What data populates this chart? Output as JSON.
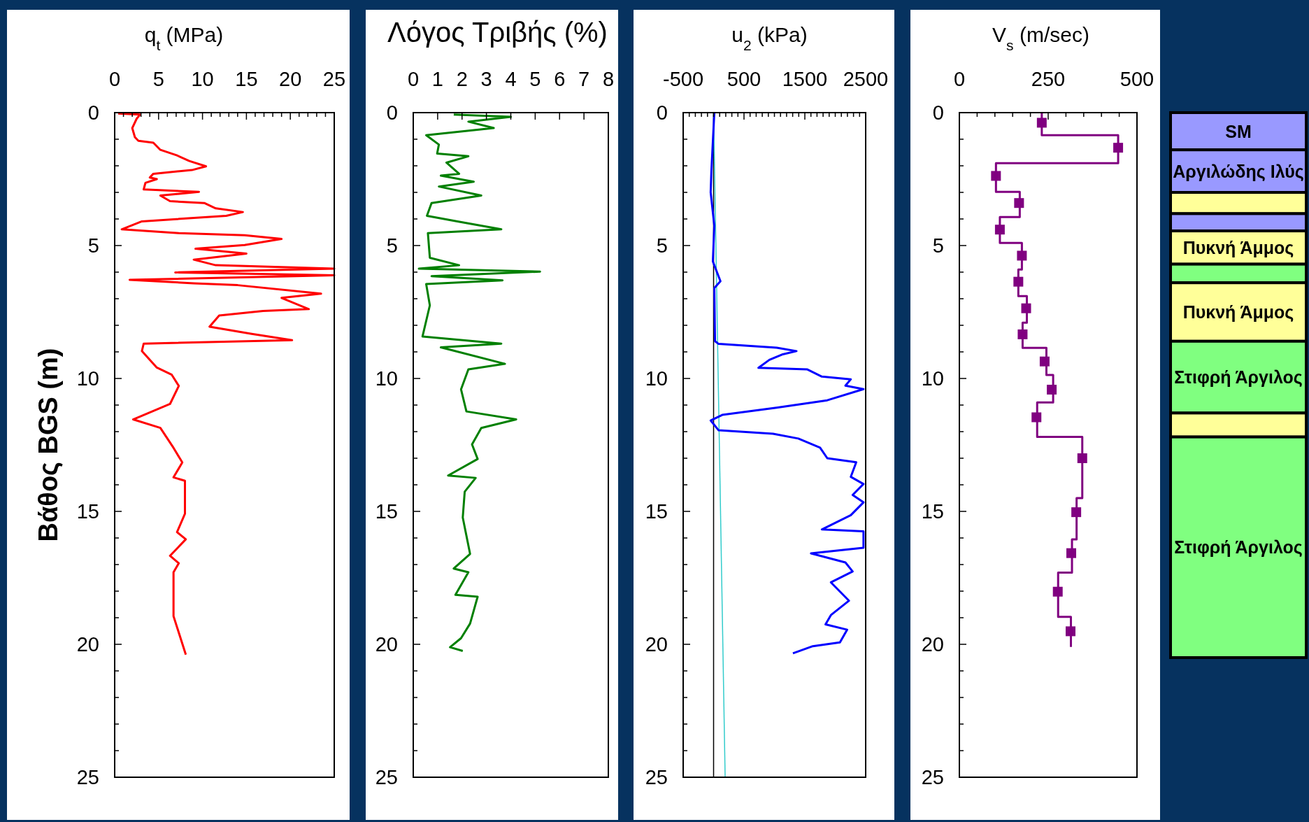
{
  "chart_data": [
    {
      "type": "line",
      "xlabel": "q$_{t}$ (MPa)",
      "ylabel": "Βάθος BGS (m)",
      "xlim": [
        0,
        25
      ],
      "ylim": [
        25,
        0
      ],
      "xticks": [
        0,
        {
          "value": 1,
          "label": null
        },
        {
          "value": 2,
          "label": null
        },
        {
          "value": 3,
          "label": null
        },
        {
          "value": 4,
          "label": null
        },
        5,
        {
          "value": 6,
          "label": null
        },
        {
          "value": 7,
          "label": null
        },
        {
          "value": 8,
          "label": null
        },
        {
          "value": 9,
          "label": null
        },
        10,
        {
          "value": 11,
          "label": null
        },
        {
          "value": 12,
          "label": null
        },
        {
          "value": 13,
          "label": null
        },
        {
          "value": 14,
          "label": null
        },
        15,
        {
          "value": 16,
          "label": null
        },
        {
          "value": 17,
          "label": null
        },
        {
          "value": 18,
          "label": null
        },
        {
          "value": 19,
          "label": null
        },
        20,
        {
          "value": 21,
          "label": null
        },
        {
          "value": 22,
          "label": null
        },
        {
          "value": 23,
          "label": null
        },
        {
          "value": 24,
          "label": null
        },
        25
      ],
      "yticks": [
        0,
        {
          "value": 1,
          "label": null
        },
        {
          "value": 2,
          "label": null
        },
        {
          "value": 3,
          "label": null
        },
        {
          "value": 4,
          "label": null
        },
        5,
        {
          "value": 6,
          "label": null
        },
        {
          "value": 7,
          "label": null
        },
        {
          "value": 8,
          "label": null
        },
        {
          "value": 9,
          "label": null
        },
        10,
        {
          "value": 11,
          "label": null
        },
        {
          "value": 12,
          "label": null
        },
        {
          "value": 13,
          "label": null
        },
        {
          "value": 14,
          "label": null
        },
        15,
        {
          "value": 16,
          "label": null
        },
        {
          "value": 17,
          "label": null
        },
        {
          "value": 18,
          "label": null
        },
        {
          "value": 19,
          "label": null
        },
        20,
        {
          "value": 21,
          "label": null
        },
        {
          "value": 22,
          "label": null
        },
        {
          "value": 23,
          "label": null
        },
        {
          "value": 24,
          "label": null
        },
        25
      ],
      "series": [
        {
          "color": "#ff0000",
          "x": [
            0.4,
            2.9,
            2.5,
            2.0,
            2.3,
            2.7,
            4.4,
            5.2,
            7.1,
            8.5,
            10.4,
            8.8,
            4.4,
            4.0,
            4.8,
            3.5,
            3.3,
            9.6,
            5.2,
            6.3,
            10.2,
            11.5,
            14.6,
            12.7,
            3.1,
            0.8,
            7.3,
            14.8,
            19.0,
            14.8,
            9.2,
            15.0,
            9.0,
            11.5,
            25.0,
            6.9,
            25.0,
            1.7,
            9.0,
            14.0,
            23.5,
            19.0,
            22.1,
            16.9,
            11.9,
            10.8,
            15.6,
            20.2,
            3.3,
            3.1,
            4.8,
            6.5,
            7.3,
            6.3,
            2.1,
            5.2,
            6.7,
            7.7,
            6.7,
            8.0,
            8.0,
            7.1,
            8.1,
            6.3,
            7.3,
            6.7,
            6.7,
            8.1
          ],
          "values": [
            0.03,
            0.07,
            0.23,
            0.58,
            0.92,
            1.06,
            1.13,
            1.4,
            1.61,
            1.82,
            2.02,
            2.16,
            2.3,
            2.44,
            2.5,
            2.64,
            2.89,
            2.98,
            3.12,
            3.33,
            3.4,
            3.6,
            3.74,
            3.88,
            4.09,
            4.39,
            4.53,
            4.61,
            4.75,
            4.98,
            5.12,
            5.3,
            5.53,
            5.74,
            5.87,
            6.01,
            6.12,
            6.29,
            6.42,
            6.49,
            6.81,
            6.97,
            7.39,
            7.46,
            7.63,
            8.05,
            8.32,
            8.56,
            8.69,
            8.97,
            9.59,
            9.86,
            10.28,
            10.96,
            11.54,
            11.86,
            12.61,
            13.16,
            13.72,
            13.85,
            15.09,
            15.78,
            16.05,
            16.67,
            16.95,
            17.29,
            18.94,
            20.39
          ]
        }
      ]
    },
    {
      "type": "line",
      "xlabel": "Λόγος Τριβής (%)",
      "xlim": [
        0,
        8
      ],
      "ylim": [
        25,
        0
      ],
      "xticks": [
        0,
        1,
        2,
        3,
        4,
        5,
        6,
        7,
        8
      ],
      "yticks": [
        0,
        {
          "value": 1,
          "label": null
        },
        {
          "value": 2,
          "label": null
        },
        {
          "value": 3,
          "label": null
        },
        {
          "value": 4,
          "label": null
        },
        5,
        {
          "value": 6,
          "label": null
        },
        {
          "value": 7,
          "label": null
        },
        {
          "value": 8,
          "label": null
        },
        {
          "value": 9,
          "label": null
        },
        10,
        {
          "value": 11,
          "label": null
        },
        {
          "value": 12,
          "label": null
        },
        {
          "value": 13,
          "label": null
        },
        {
          "value": 14,
          "label": null
        },
        15,
        {
          "value": 16,
          "label": null
        },
        {
          "value": 17,
          "label": null
        },
        {
          "value": 18,
          "label": null
        },
        {
          "value": 19,
          "label": null
        },
        20,
        {
          "value": 21,
          "label": null
        },
        {
          "value": 22,
          "label": null
        },
        {
          "value": 23,
          "label": null
        },
        {
          "value": 24,
          "label": null
        },
        25
      ],
      "series": [
        {
          "color": "#008000",
          "x": [
            1.66,
            4.0,
            2.26,
            3.3,
            0.53,
            1.05,
            0.98,
            2.26,
            1.36,
            1.88,
            1.13,
            2.48,
            1.05,
            2.79,
            0.75,
            0.56,
            1.81,
            3.61,
            0.6,
            0.68,
            1.88,
            0.23,
            5.2,
            0.75,
            3.66,
            0.53,
            0.68,
            0.38,
            3.61,
            1.13,
            3.76,
            2.26,
            1.96,
            2.18,
            4.22,
            2.79,
            2.41,
            2.64,
            1.43,
            2.56,
            2.11,
            2.03,
            2.33,
            1.66,
            2.26,
            1.73,
            2.64,
            2.33,
            1.96,
            1.51,
            2.03
          ],
          "values": [
            0.07,
            0.16,
            0.34,
            0.58,
            0.85,
            1.2,
            1.54,
            1.64,
            1.88,
            2.3,
            2.37,
            2.6,
            2.78,
            3.12,
            3.4,
            3.88,
            4.09,
            4.39,
            4.53,
            5.46,
            5.74,
            5.87,
            5.98,
            6.15,
            6.31,
            6.45,
            7.25,
            8.42,
            8.69,
            8.83,
            9.45,
            9.66,
            10.41,
            11.24,
            11.54,
            11.86,
            12.48,
            13.03,
            13.65,
            13.74,
            14.26,
            15.23,
            16.6,
            17.15,
            17.29,
            18.14,
            18.21,
            19.22,
            19.77,
            20.11,
            20.25
          ]
        }
      ]
    },
    {
      "type": "line",
      "xlabel": "u$_{2}$ (kPa)",
      "xlim": [
        -500,
        2500
      ],
      "ylim": [
        25,
        0
      ],
      "xticks": [
        -500,
        {
          "value": -400,
          "label": null
        },
        {
          "value": -300,
          "label": null
        },
        {
          "value": -200,
          "label": null
        },
        {
          "value": -100,
          "label": null
        },
        {
          "value": 0,
          "label": null
        },
        {
          "value": 100,
          "label": null
        },
        {
          "value": 200,
          "label": null
        },
        {
          "value": 300,
          "label": null
        },
        {
          "value": 400,
          "label": null
        },
        500,
        {
          "value": 600,
          "label": null
        },
        {
          "value": 700,
          "label": null
        },
        {
          "value": 800,
          "label": null
        },
        {
          "value": 900,
          "label": null
        },
        {
          "value": 1000,
          "label": null
        },
        {
          "value": 1100,
          "label": null
        },
        {
          "value": 1200,
          "label": null
        },
        {
          "value": 1300,
          "label": null
        },
        {
          "value": 1400,
          "label": null
        },
        1500,
        {
          "value": 1600,
          "label": null
        },
        {
          "value": 1700,
          "label": null
        },
        {
          "value": 1800,
          "label": null
        },
        {
          "value": 1900,
          "label": null
        },
        {
          "value": 2000,
          "label": null
        },
        {
          "value": 2100,
          "label": null
        },
        {
          "value": 2200,
          "label": null
        },
        {
          "value": 2300,
          "label": null
        },
        {
          "value": 2400,
          "label": null
        },
        2500
      ],
      "yticks": [
        0,
        {
          "value": 1,
          "label": null
        },
        {
          "value": 2,
          "label": null
        },
        {
          "value": 3,
          "label": null
        },
        {
          "value": 4,
          "label": null
        },
        5,
        {
          "value": 6,
          "label": null
        },
        {
          "value": 7,
          "label": null
        },
        {
          "value": 8,
          "label": null
        },
        {
          "value": 9,
          "label": null
        },
        10,
        {
          "value": 11,
          "label": null
        },
        {
          "value": 12,
          "label": null
        },
        {
          "value": 13,
          "label": null
        },
        {
          "value": 14,
          "label": null
        },
        15,
        {
          "value": 16,
          "label": null
        },
        {
          "value": 17,
          "label": null
        },
        {
          "value": 18,
          "label": null
        },
        {
          "value": 19,
          "label": null
        },
        20,
        {
          "value": 21,
          "label": null
        },
        {
          "value": 22,
          "label": null
        },
        {
          "value": 23,
          "label": null
        },
        {
          "value": 24,
          "label": null
        },
        25
      ],
      "ref_lines": [
        {
          "axis": "x",
          "value": 0,
          "color": "#000000"
        }
      ],
      "series": [
        {
          "color": "#33cccc",
          "x": [
            0,
            190
          ],
          "values": [
            0,
            25
          ]
        },
        {
          "color": "#0000ff",
          "x": [
            12,
            -36,
            -48,
            12,
            -12,
            113,
            12,
            24,
            83,
            1036,
            1363,
            1125,
            917,
            738,
            1542,
            1780,
            2256,
            2167,
            2464,
            1869,
            1036,
            143,
            -48,
            83,
            976,
            1393,
            1750,
            1869,
            2345,
            2256,
            2464,
            2286,
            2464,
            2256,
            1780,
            2464,
            2464,
            1601,
            2167,
            2286,
            1929,
            2226,
            1929,
            1840,
            2196,
            2077,
            1631,
            1304
          ],
          "values": [
            0,
            2.2,
            3.0,
            4.25,
            5.6,
            6.34,
            6.6,
            8.6,
            8.7,
            8.84,
            8.97,
            9.1,
            9.3,
            9.6,
            9.66,
            9.93,
            10.03,
            10.27,
            10.4,
            10.82,
            11.1,
            11.37,
            11.58,
            11.95,
            12.08,
            12.26,
            12.6,
            13.0,
            13.15,
            13.7,
            13.97,
            14.38,
            14.66,
            15.14,
            15.68,
            15.75,
            16.37,
            16.58,
            16.92,
            17.26,
            17.67,
            18.36,
            18.9,
            19.25,
            19.45,
            19.93,
            20.07,
            20.34
          ]
        }
      ]
    },
    {
      "type": "line",
      "xlabel": "V$_{s}$ (m/sec)",
      "xlim": [
        0,
        500
      ],
      "ylim": [
        25,
        0
      ],
      "xticks": [
        0,
        {
          "value": 50,
          "label": null
        },
        {
          "value": 100,
          "label": null
        },
        {
          "value": 150,
          "label": null
        },
        {
          "value": 200,
          "label": null
        },
        250,
        {
          "value": 300,
          "label": null
        },
        {
          "value": 350,
          "label": null
        },
        {
          "value": 400,
          "label": null
        },
        {
          "value": 450,
          "label": null
        },
        500
      ],
      "yticks": [
        0,
        {
          "value": 1,
          "label": null
        },
        {
          "value": 2,
          "label": null
        },
        {
          "value": 3,
          "label": null
        },
        {
          "value": 4,
          "label": null
        },
        5,
        {
          "value": 6,
          "label": null
        },
        {
          "value": 7,
          "label": null
        },
        {
          "value": 8,
          "label": null
        },
        {
          "value": 9,
          "label": null
        },
        10,
        {
          "value": 11,
          "label": null
        },
        {
          "value": 12,
          "label": null
        },
        {
          "value": 13,
          "label": null
        },
        {
          "value": 14,
          "label": null
        },
        15,
        {
          "value": 16,
          "label": null
        },
        {
          "value": 17,
          "label": null
        },
        {
          "value": 18,
          "label": null
        },
        {
          "value": 19,
          "label": null
        },
        20,
        {
          "value": 21,
          "label": null
        },
        {
          "value": 22,
          "label": null
        },
        {
          "value": 23,
          "label": null
        },
        {
          "value": 24,
          "label": null
        },
        25
      ],
      "series": [
        {
          "color": "#800080",
          "x": [
            232,
            232,
            447,
            447,
            103,
            103,
            170,
            170,
            114,
            114,
            176,
            176,
            166,
            166,
            190,
            190,
            178,
            178,
            245,
            245,
            264,
            264,
            219,
            219,
            346,
            346,
            330,
            330,
            317,
            317,
            278,
            278,
            314,
            314
          ],
          "values": [
            0,
            0.85,
            0.85,
            1.9,
            1.9,
            2.98,
            2.98,
            3.93,
            3.93,
            4.9,
            4.9,
            5.9,
            5.9,
            6.9,
            6.9,
            7.9,
            7.9,
            8.85,
            8.85,
            9.87,
            9.87,
            10.9,
            10.9,
            12.2,
            12.2,
            14.5,
            14.5,
            16.05,
            16.05,
            17.3,
            17.3,
            18.97,
            18.97,
            20.1
          ]
        },
        {
          "type": "scatter",
          "marker": "square",
          "color": "#800080",
          "x": [
            232,
            447,
            103,
            168,
            114,
            176,
            166,
            188,
            178,
            240,
            260,
            217,
            346,
            329,
            315,
            277,
            313
          ],
          "values": [
            0.38,
            1.32,
            2.38,
            3.4,
            4.4,
            5.38,
            6.36,
            7.36,
            8.34,
            9.36,
            10.42,
            11.46,
            13.0,
            15.03,
            16.57,
            18.02,
            19.51
          ]
        }
      ]
    },
    {
      "type": "bar",
      "stacked": true,
      "categories": [
        null
      ],
      "ylim": [
        25,
        0
      ],
      "series": [
        {
          "name": "SM",
          "color": "#9999ff",
          "values": [
            1.4
          ]
        },
        {
          "name": "Αργιλώδης Ιλύς",
          "color": "#9999ff",
          "values": [
            1.6
          ]
        },
        {
          "color": "#ffff99",
          "values": [
            0.8
          ]
        },
        {
          "color": "#9999ff",
          "values": [
            0.65
          ]
        },
        {
          "name": "Πυκνή Άμμος",
          "color": "#ffff99",
          "values": [
            1.25
          ]
        },
        {
          "color": "#80ff80",
          "values": [
            0.7
          ]
        },
        {
          "name": "Πυκνή Άμμος",
          "color": "#ffff99",
          "values": [
            2.2
          ]
        },
        {
          "name": "Στιφρή Άργιλος",
          "color": "#80ff80",
          "values": [
            2.7
          ]
        },
        {
          "color": "#ffff99",
          "values": [
            0.9
          ]
        },
        {
          "name": "Στιφρή Άργιλος",
          "color": "#80ff80",
          "values": [
            8.3
          ]
        }
      ]
    }
  ]
}
